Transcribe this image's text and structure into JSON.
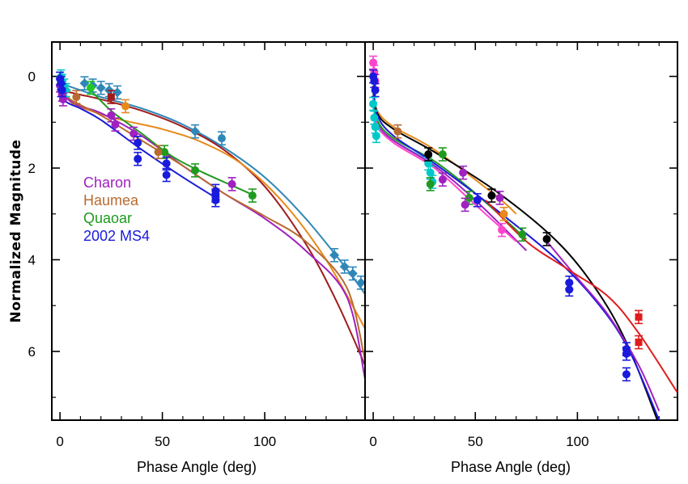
{
  "figure": {
    "ylabel": "Normalized Magnitude",
    "xlabel": "Phase Angle (deg)"
  },
  "legend": [
    {
      "label": "Charon",
      "color": "#a020c0"
    },
    {
      "label": "Haumea",
      "color": "#b86a30"
    },
    {
      "label": "Quaoar",
      "color": "#1f9a1f"
    },
    {
      "label": "2002 MS4",
      "color": "#1a1adc"
    }
  ],
  "chart_data": [
    {
      "type": "scatter",
      "xlabel": "Phase Angle (deg)",
      "ylabel": "Normalized Magnitude",
      "xlim": [
        -4,
        149
      ],
      "ylim": [
        7.5,
        -0.75
      ],
      "xticks": [
        0,
        50,
        100
      ],
      "yticks": [
        0,
        2,
        4,
        6
      ],
      "curves": [
        {
          "color": "#2f87b8",
          "x": [
            0,
            10,
            20,
            40,
            60,
            80,
            100,
            120,
            140,
            149
          ],
          "y": [
            0.15,
            0.3,
            0.45,
            0.7,
            1.05,
            1.55,
            2.2,
            3.1,
            4.2,
            4.75
          ]
        },
        {
          "color": "#a01c1c",
          "x": [
            0,
            10,
            20,
            40,
            60,
            80,
            100,
            120,
            135,
            149
          ],
          "y": [
            0.3,
            0.4,
            0.5,
            0.75,
            1.1,
            1.6,
            2.4,
            3.65,
            4.9,
            6.3
          ]
        },
        {
          "color": "#e8891a",
          "x": [
            0,
            5,
            15,
            30,
            50,
            70,
            90,
            110,
            130,
            149
          ],
          "y": [
            0.1,
            0.55,
            0.75,
            0.95,
            1.15,
            1.45,
            1.95,
            2.8,
            4.0,
            5.5
          ]
        },
        {
          "color": "#a020c0",
          "x": [
            0,
            3,
            10,
            20,
            40,
            60,
            80,
            100,
            120,
            140,
            149
          ],
          "y": [
            0.0,
            0.45,
            0.65,
            0.8,
            1.3,
            1.95,
            2.55,
            3.1,
            3.8,
            4.8,
            6.6
          ]
        },
        {
          "color": "#b86a30",
          "x": [
            0,
            5,
            20,
            40,
            60,
            80,
            100,
            120,
            140,
            149
          ],
          "y": [
            0.2,
            0.5,
            0.85,
            1.4,
            1.95,
            2.55,
            3.05,
            3.6,
            4.6,
            6.2
          ]
        },
        {
          "color": "#1f9a1f",
          "x": [
            15,
            25,
            40,
            55,
            70,
            85,
            95
          ],
          "y": [
            0.3,
            0.75,
            1.25,
            1.75,
            2.1,
            2.4,
            2.6
          ]
        },
        {
          "color": "#1a1adc",
          "x": [
            0,
            2,
            10,
            20,
            40,
            60,
            78
          ],
          "y": [
            0.0,
            0.5,
            0.7,
            0.95,
            1.6,
            2.2,
            2.7
          ]
        }
      ],
      "points": [
        {
          "color": "#2f87b8",
          "marker": "diamond",
          "x": [
            12,
            16,
            20,
            24,
            28,
            66
          ],
          "y": [
            0.15,
            0.2,
            0.25,
            0.3,
            0.35,
            1.2
          ]
        },
        {
          "color": "#2f87b8",
          "marker": "circle",
          "x": [
            79
          ],
          "y": [
            1.35
          ]
        },
        {
          "color": "#2f87b8",
          "marker": "diamond",
          "x": [
            134,
            139,
            143,
            147
          ],
          "y": [
            3.9,
            4.15,
            4.3,
            4.5
          ]
        },
        {
          "color": "#00c8c8",
          "marker": "diamond",
          "x": [
            0.5,
            1,
            2,
            3
          ],
          "y": [
            0.0,
            0.1,
            0.2,
            0.3
          ]
        },
        {
          "color": "#22c822",
          "marker": "circle",
          "x": [
            15
          ],
          "y": [
            0.25
          ]
        },
        {
          "color": "#a01c1c",
          "marker": "square",
          "x": [
            25
          ],
          "y": [
            0.45
          ]
        },
        {
          "color": "#b86a30",
          "marker": "circle",
          "x": [
            8
          ],
          "y": [
            0.45
          ]
        },
        {
          "color": "#e8891a",
          "marker": "circle",
          "x": [
            32
          ],
          "y": [
            0.65
          ]
        },
        {
          "color": "#a020c0",
          "marker": "circle",
          "x": [
            0,
            0.5,
            1,
            1.5,
            25,
            27,
            36,
            84
          ],
          "y": [
            0.2,
            0.3,
            0.4,
            0.5,
            0.85,
            1.05,
            1.25,
            2.35
          ]
        },
        {
          "color": "#1f9a1f",
          "marker": "circle",
          "x": [
            51,
            66,
            94
          ],
          "y": [
            1.65,
            2.05,
            2.6
          ]
        },
        {
          "color": "#b86a30",
          "marker": "circle",
          "x": [
            48
          ],
          "y": [
            1.65
          ]
        },
        {
          "color": "#1a1adc",
          "marker": "circle",
          "x": [
            0,
            0.5,
            1,
            38,
            38,
            52,
            52,
            76,
            76,
            76
          ],
          "y": [
            0.05,
            0.15,
            0.3,
            1.45,
            1.8,
            1.9,
            2.15,
            2.5,
            2.6,
            2.7
          ]
        }
      ]
    },
    {
      "type": "scatter",
      "xlabel": "Phase Angle (deg)",
      "xlim": [
        -4,
        149
      ],
      "ylim": [
        7.5,
        -0.75
      ],
      "xticks": [
        0,
        50,
        100
      ],
      "yticks": [
        0,
        2,
        4,
        6
      ],
      "curves": [
        {
          "color": "#e8891a",
          "x": [
            0,
            2,
            10,
            30,
            60,
            70
          ],
          "y": [
            0.3,
            0.75,
            1.1,
            1.6,
            2.6,
            3.0
          ]
        },
        {
          "color": "#00c8c8",
          "x": [
            0,
            2,
            10,
            25,
            35
          ],
          "y": [
            0.5,
            1.1,
            1.4,
            1.8,
            2.2
          ]
        },
        {
          "color": "#a020c0",
          "x": [
            0,
            2,
            10,
            30,
            50,
            75
          ],
          "y": [
            0.3,
            1.0,
            1.4,
            1.95,
            2.7,
            3.8
          ]
        },
        {
          "color": "#ff44cc",
          "x": [
            0,
            2,
            10,
            30,
            50,
            70
          ],
          "y": [
            0.4,
            1.05,
            1.45,
            2.0,
            2.8,
            3.6
          ]
        },
        {
          "color": "#1f9a1f",
          "x": [
            0,
            2,
            10,
            30,
            50,
            75
          ],
          "y": [
            0.35,
            0.95,
            1.35,
            1.85,
            2.55,
            3.55
          ]
        },
        {
          "color": "#000000",
          "x": [
            0,
            2,
            10,
            30,
            60,
            90,
            110,
            125,
            140
          ],
          "y": [
            0.2,
            0.8,
            1.15,
            1.65,
            2.5,
            3.6,
            4.7,
            5.9,
            7.6
          ]
        },
        {
          "color": "#1a1adc",
          "x": [
            0,
            2,
            10,
            30,
            60,
            90,
            110,
            125,
            140
          ],
          "y": [
            0.25,
            0.85,
            1.3,
            1.9,
            2.9,
            4.0,
            4.95,
            5.95,
            7.5
          ]
        },
        {
          "color": "#a020c0",
          "x": [
            85,
            100,
            115,
            130,
            140
          ],
          "y": [
            3.6,
            4.4,
            5.2,
            6.3,
            7.3
          ]
        },
        {
          "color": "#e01c1c",
          "x": [
            55,
            75,
            95,
            115,
            130,
            149
          ],
          "y": [
            2.7,
            3.6,
            4.2,
            4.8,
            5.6,
            6.9
          ]
        }
      ],
      "points": [
        {
          "color": "#ff44cc",
          "marker": "circle",
          "x": [
            0,
            0.5,
            1
          ],
          "y": [
            -0.3,
            -0.1,
            0.1
          ]
        },
        {
          "color": "#1a1adc",
          "marker": "circle",
          "x": [
            0,
            0.5,
            1
          ],
          "y": [
            0.0,
            0.1,
            0.3
          ]
        },
        {
          "color": "#00c8c8",
          "marker": "circle",
          "x": [
            0,
            0.5,
            1,
            1.5,
            27,
            28,
            29
          ],
          "y": [
            0.6,
            0.9,
            1.1,
            1.3,
            1.9,
            2.1,
            2.3
          ]
        },
        {
          "color": "#b86a30",
          "marker": "circle",
          "x": [
            12
          ],
          "y": [
            1.2
          ]
        },
        {
          "color": "#000000",
          "marker": "circle",
          "x": [
            27,
            58,
            85
          ],
          "y": [
            1.7,
            2.6,
            3.55
          ]
        },
        {
          "color": "#1f9a1f",
          "marker": "circle",
          "x": [
            28,
            34,
            47,
            73
          ],
          "y": [
            2.35,
            1.7,
            2.65,
            3.45
          ]
        },
        {
          "color": "#a020c0",
          "marker": "circle",
          "x": [
            34,
            44,
            45,
            62
          ],
          "y": [
            2.25,
            2.1,
            2.8,
            2.65
          ]
        },
        {
          "color": "#1a1adc",
          "marker": "circle",
          "x": [
            51,
            96,
            96,
            124,
            124,
            124
          ],
          "y": [
            2.7,
            4.5,
            4.65,
            5.95,
            6.05,
            6.5
          ]
        },
        {
          "color": "#e8891a",
          "marker": "circle",
          "x": [
            64
          ],
          "y": [
            3.0
          ]
        },
        {
          "color": "#ff44cc",
          "marker": "circle",
          "x": [
            63
          ],
          "y": [
            3.35
          ]
        },
        {
          "color": "#e01c1c",
          "marker": "square",
          "x": [
            130,
            130
          ],
          "y": [
            5.25,
            5.8
          ]
        }
      ]
    }
  ]
}
